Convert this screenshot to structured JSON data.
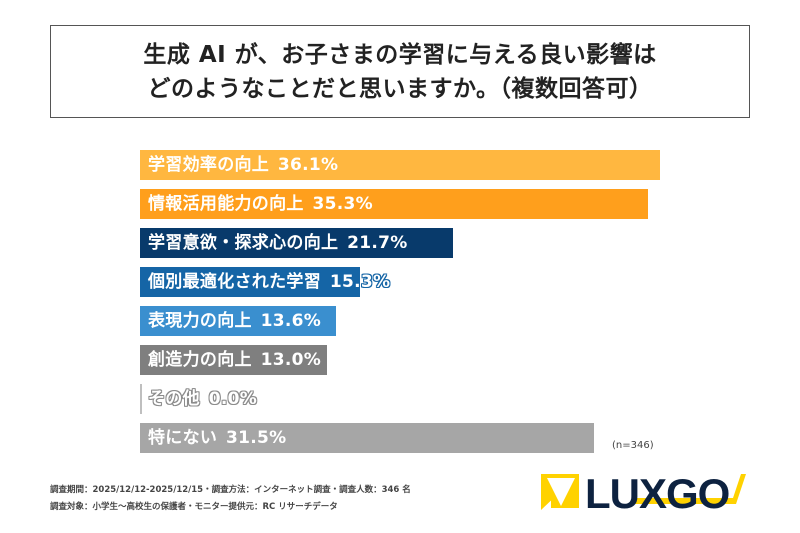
{
  "title": {
    "line1": "生成 AI が、お子さまの学習に与える良い影響は",
    "line2": "どのようなことだと思いますか。（複数回答可）"
  },
  "chart_data": {
    "type": "bar",
    "orientation": "horizontal",
    "categories": [
      "学習効率の向上",
      "情報活用能力の向上",
      "学習意欲・探求心の向上",
      "個別最適化された学習",
      "表現力の向上",
      "創造力の向上",
      "その他",
      "特にない"
    ],
    "values": [
      36.1,
      35.3,
      21.7,
      15.3,
      13.6,
      13.0,
      0.0,
      31.5
    ],
    "value_labels": [
      "36.1%",
      "35.3%",
      "21.7%",
      "15.3%",
      "13.6%",
      "13.0%",
      "0.0%",
      "31.5%"
    ],
    "colors": [
      "#FFB740",
      "#FF9F1C",
      "#083A6B",
      "#1565A6",
      "#3A8FCF",
      "#7F7F7F",
      "#BFBFBF",
      "#A6A6A6"
    ],
    "xlim": [
      0,
      40
    ],
    "grid": false,
    "sample_size": "(n=346)"
  },
  "footer": {
    "line1": "調査期間：2025/12/12-2025/12/15・調査方法：インターネット調査・調査人数：346 名",
    "line2": "調査対象：小学生〜高校生の保護者・モニター提供元：RC リサーチデータ"
  },
  "logo": {
    "text": "LUXGO",
    "colors": {
      "navy": "#0D2240",
      "yellow": "#FFD200"
    }
  }
}
